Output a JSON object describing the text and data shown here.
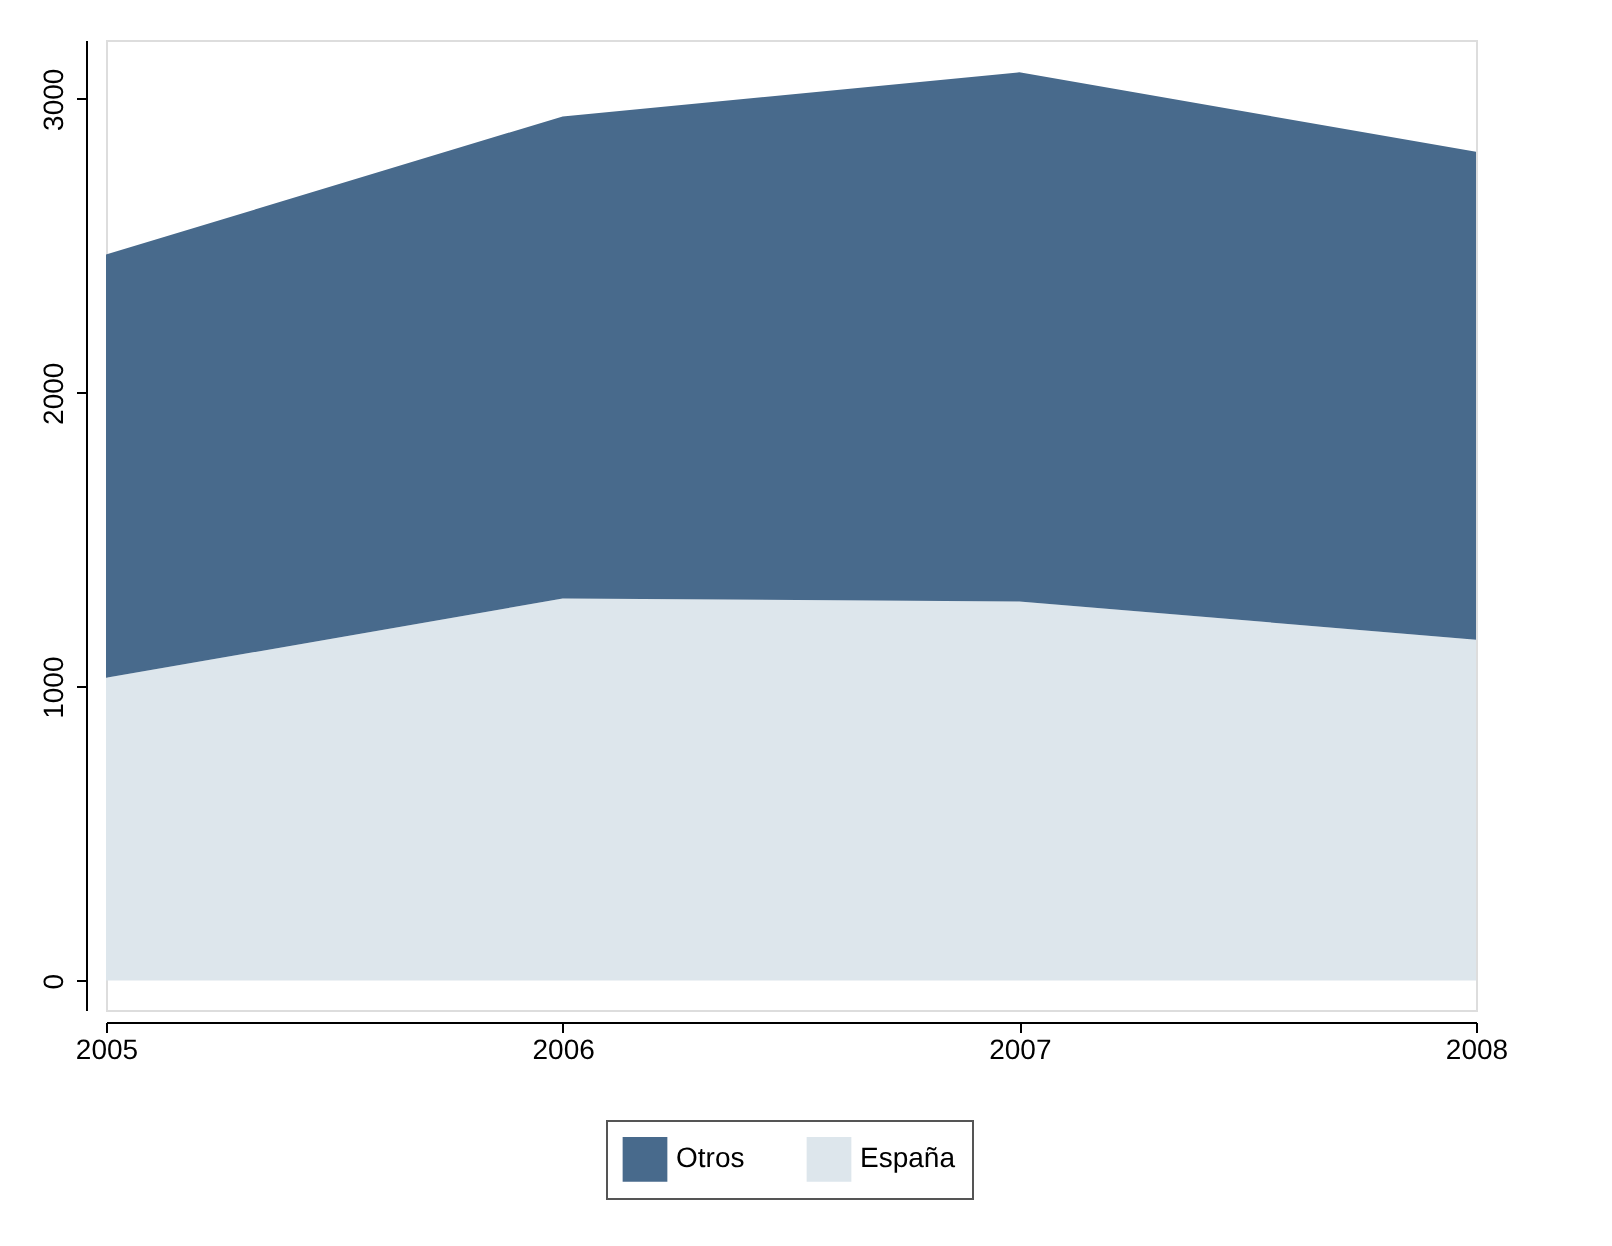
{
  "chart_data": {
    "type": "area",
    "stacked": true,
    "x": [
      2005,
      2006,
      2007,
      2008
    ],
    "series": [
      {
        "name": "España",
        "color": "#dde6ec",
        "values": [
          1030,
          1300,
          1290,
          1160
        ]
      },
      {
        "name": "Otros",
        "color": "#486a8c",
        "values": [
          1440,
          1640,
          1800,
          1660
        ]
      }
    ],
    "xlim": [
      2005,
      2008
    ],
    "xticks": [
      2005,
      2006,
      2007,
      2008
    ],
    "ylim": [
      -100,
      3200
    ],
    "yticks": [
      0,
      1000,
      2000,
      3000
    ],
    "grid": false,
    "legend": "bottom"
  }
}
